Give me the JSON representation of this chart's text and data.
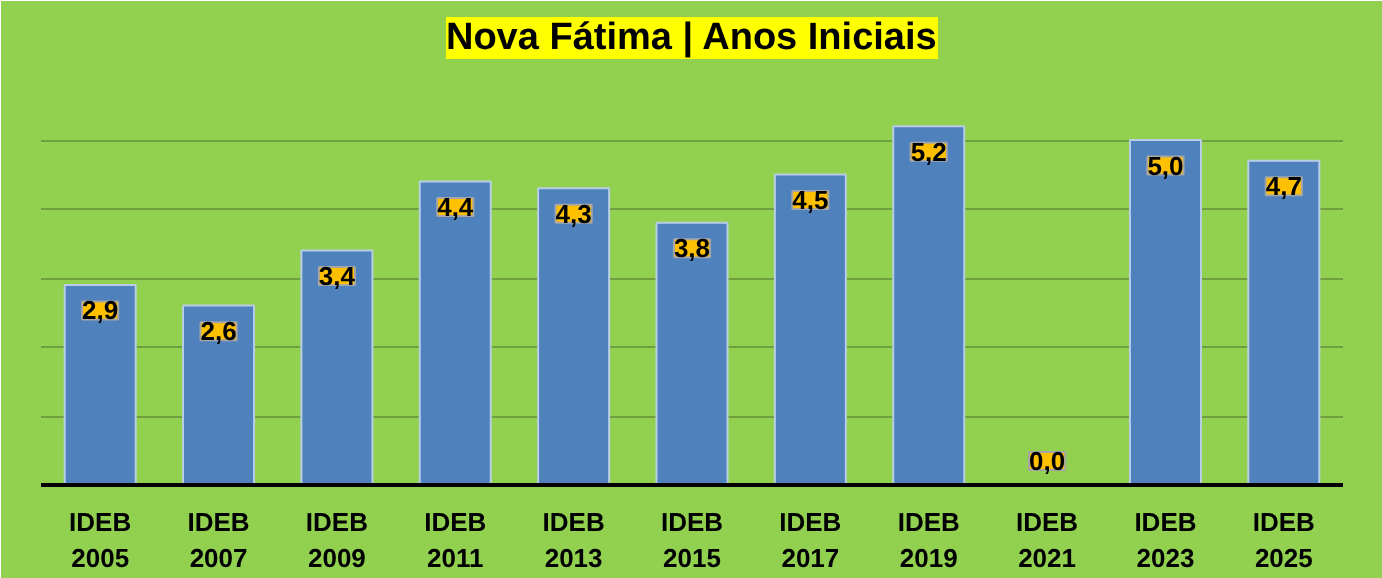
{
  "chart_data": {
    "type": "bar",
    "title": "Nova Fátima | Anos Iniciais",
    "categories": [
      "IDEB\n2005",
      "IDEB\n2007",
      "IDEB\n2009",
      "IDEB\n2011",
      "IDEB\n2013",
      "IDEB\n2015",
      "IDEB\n2017",
      "IDEB\n2019",
      "IDEB\n2021",
      "IDEB\n2023",
      "IDEB\n2025"
    ],
    "values": [
      2.9,
      2.6,
      3.4,
      4.4,
      4.3,
      3.8,
      4.5,
      5.2,
      0.0,
      5.0,
      4.7
    ],
    "value_labels": [
      "2,9",
      "2,6",
      "3,4",
      "4,4",
      "4,3",
      "3,8",
      "4,5",
      "5,2",
      "0,0",
      "5,0",
      "4,7"
    ],
    "color": "#4f81bd",
    "ylim": [
      0,
      6
    ],
    "yticks": [
      {
        "value": 0,
        "label": null
      },
      {
        "value": 1,
        "label": null
      },
      {
        "value": 2,
        "label": null
      },
      {
        "value": 3,
        "label": null
      },
      {
        "value": 4,
        "label": null
      },
      {
        "value": 5,
        "label": null
      },
      {
        "value": 6,
        "label": null
      }
    ],
    "grid": "y",
    "tick_labels": "x"
  }
}
